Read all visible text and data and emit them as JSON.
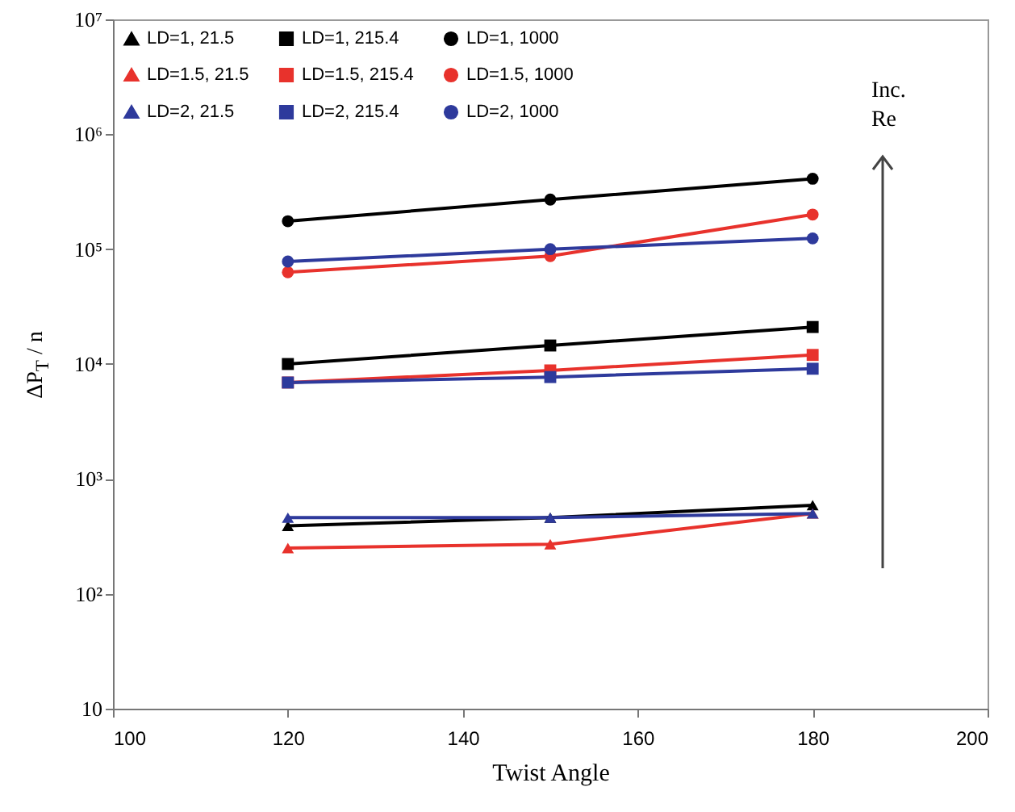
{
  "chart_data": {
    "type": "line",
    "xlabel": "Twist Angle",
    "ylabel": "ΔP$_{T}$ / n",
    "x": [
      120,
      150,
      180
    ],
    "xlim": [
      100,
      200
    ],
    "xticks": [
      100,
      120,
      140,
      160,
      180,
      200
    ],
    "ylim": [
      10,
      10000000
    ],
    "log": true,
    "yticks": [
      10,
      {
        "value": 100,
        "label": "10²"
      },
      {
        "value": 1000,
        "label": "10³"
      },
      {
        "value": 10000,
        "label": "10⁴"
      },
      {
        "value": 100000,
        "label": "10⁵"
      },
      {
        "value": 1000000,
        "label": "10⁶"
      },
      {
        "value": 10000000,
        "label": "10⁷"
      }
    ],
    "grid": false,
    "legend": "top left",
    "line_style": "solid",
    "annotations": [
      "Inc. Re"
    ],
    "series": [
      {
        "name": "LD=1, 21.5",
        "color": "#000000",
        "marker": "triangle",
        "values": [
          390,
          460,
          590
        ]
      },
      {
        "name": "LD=1, 215.4",
        "color": "#000000",
        "marker": "square",
        "values": [
          10000,
          14500,
          21000
        ]
      },
      {
        "name": "LD=1, 1000",
        "color": "#000000",
        "marker": "circle",
        "values": [
          175000,
          270000,
          410000
        ]
      },
      {
        "name": "LD=1.5, 21.5",
        "color": "#e8322c",
        "marker": "triangle",
        "values": [
          250,
          270,
          500
        ]
      },
      {
        "name": "LD=1.5, 215.4",
        "color": "#e8322c",
        "marker": "square",
        "values": [
          6900,
          8800,
          12000
        ]
      },
      {
        "name": "LD=1.5, 1000",
        "color": "#e8322c",
        "marker": "circle",
        "values": [
          63000,
          87000,
          200000
        ]
      },
      {
        "name": "LD=2, 21.5",
        "color": "#2e3a9c",
        "marker": "triangle",
        "values": [
          460,
          460,
          500
        ]
      },
      {
        "name": "LD=2, 215.4",
        "color": "#2e3a9c",
        "marker": "square",
        "values": [
          6900,
          7700,
          9100
        ]
      },
      {
        "name": "LD=2, 1000",
        "color": "#2e3a9c",
        "marker": "circle",
        "values": [
          78000,
          100000,
          124000
        ]
      }
    ]
  }
}
